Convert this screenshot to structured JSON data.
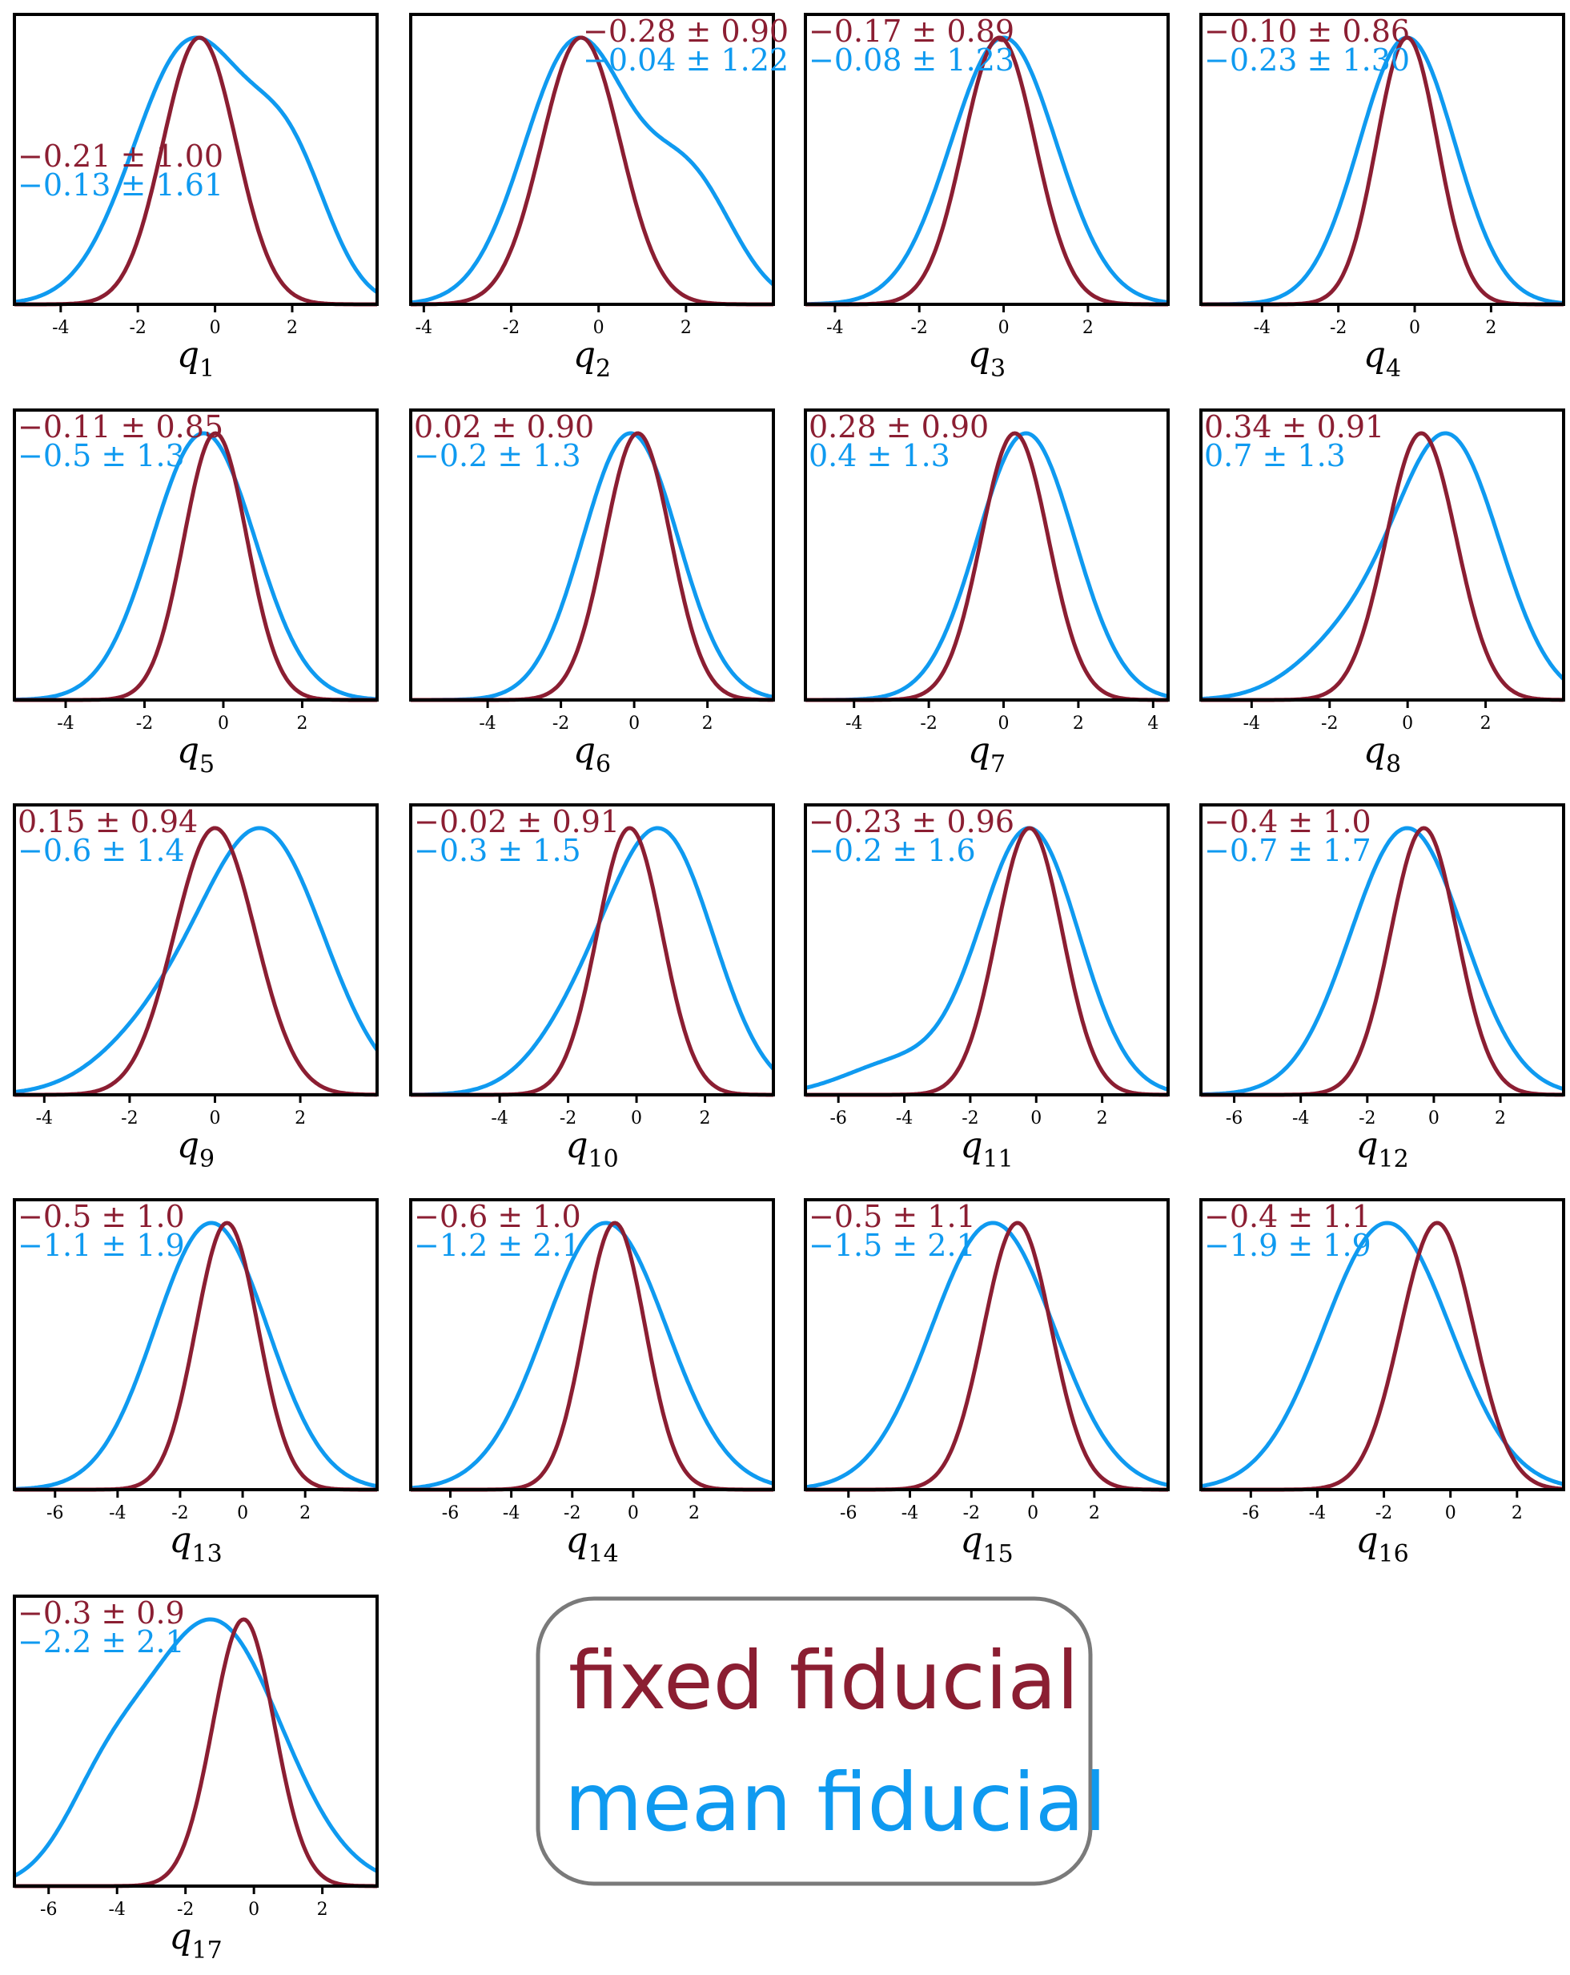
{
  "colors": {
    "fixed": "#8b1e32",
    "mean": "#0f9af0"
  },
  "legend": {
    "entries": [
      {
        "label": "fixed fiducial",
        "color": "#8b1e32"
      },
      {
        "label": "mean fiducial",
        "color": "#0f9af0"
      }
    ]
  },
  "chart_data": [
    {
      "type": "line",
      "xlabel": "q",
      "xsub": "1",
      "xlim": [
        -5.2,
        4.2
      ],
      "ticks": [
        -4,
        -2,
        0,
        2
      ],
      "tick_labels": [
        "-4",
        "-2",
        "0",
        "2"
      ],
      "fixed": {
        "mu": -0.4,
        "sigma": 0.95
      },
      "mean": {
        "mu": -0.6,
        "sigma": 1.5,
        "right_shoulder": true
      },
      "ann": [
        "−0.21 ± 1.00",
        "−0.13 ± 1.61"
      ],
      "ann_pos": "middle-left"
    },
    {
      "type": "line",
      "xlabel": "q",
      "xsub": "2",
      "xlim": [
        -4.3,
        4.0
      ],
      "ticks": [
        -4,
        -2,
        0,
        2
      ],
      "tick_labels": [
        "-4",
        "-2",
        "0",
        "2"
      ],
      "fixed": {
        "mu": -0.4,
        "sigma": 0.9
      },
      "mean": {
        "mu": -0.5,
        "sigma": 1.2,
        "right_shoulder": true
      },
      "ann": [
        "−0.28 ± 0.90",
        "−0.04 ± 1.22"
      ],
      "ann_pos": "top-right"
    },
    {
      "type": "line",
      "xlabel": "q",
      "xsub": "3",
      "xlim": [
        -4.7,
        3.9
      ],
      "ticks": [
        -4,
        -2,
        0,
        2
      ],
      "tick_labels": [
        "-4",
        "-2",
        "0",
        "2"
      ],
      "fixed": {
        "mu": -0.1,
        "sigma": 0.85
      },
      "mean": {
        "mu": 0.0,
        "sigma": 1.25
      },
      "ann": [
        "−0.17 ± 0.89",
        "−0.08 ± 1.23"
      ],
      "ann_pos": "top-left"
    },
    {
      "type": "line",
      "xlabel": "q",
      "xsub": "4",
      "xlim": [
        -5.6,
        3.9
      ],
      "ticks": [
        -4,
        -2,
        0,
        2
      ],
      "tick_labels": [
        "-4",
        "-2",
        "0",
        "2"
      ],
      "fixed": {
        "mu": -0.2,
        "sigma": 0.8
      },
      "mean": {
        "mu": -0.2,
        "sigma": 1.25
      },
      "ann": [
        "−0.10 ± 0.86",
        "−0.23 ± 1.30"
      ],
      "ann_pos": "top-left"
    },
    {
      "type": "line",
      "xlabel": "q",
      "xsub": "5",
      "xlim": [
        -5.3,
        3.9
      ],
      "ticks": [
        -4,
        -2,
        0,
        2
      ],
      "tick_labels": [
        "-4",
        "-2",
        "0",
        "2"
      ],
      "fixed": {
        "mu": -0.2,
        "sigma": 0.8
      },
      "mean": {
        "mu": -0.5,
        "sigma": 1.3
      },
      "ann": [
        "−0.11 ± 0.85",
        "−0.5 ± 1.3"
      ],
      "ann_pos": "top-left"
    },
    {
      "type": "line",
      "xlabel": "q",
      "xsub": "6",
      "xlim": [
        -6.1,
        3.8
      ],
      "ticks": [
        -4,
        -2,
        0,
        2
      ],
      "tick_labels": [
        "-4",
        "-2",
        "0",
        "2"
      ],
      "fixed": {
        "mu": 0.1,
        "sigma": 0.9
      },
      "mean": {
        "mu": -0.1,
        "sigma": 1.3
      },
      "ann": [
        "0.02 ± 0.90",
        "−0.2 ± 1.3"
      ],
      "ann_pos": "top-left"
    },
    {
      "type": "line",
      "xlabel": "q",
      "xsub": "7",
      "xlim": [
        -5.3,
        4.4
      ],
      "ticks": [
        -4,
        -2,
        0,
        2,
        4
      ],
      "tick_labels": [
        "-4",
        "-2",
        "0",
        "2",
        "4"
      ],
      "fixed": {
        "mu": 0.3,
        "sigma": 0.9
      },
      "mean": {
        "mu": 0.6,
        "sigma": 1.3
      },
      "ann": [
        "0.28 ± 0.90",
        "0.4 ± 1.3"
      ],
      "ann_pos": "top-left"
    },
    {
      "type": "line",
      "xlabel": "q",
      "xsub": "8",
      "xlim": [
        -5.3,
        4.0
      ],
      "ticks": [
        -4,
        -2,
        0,
        2
      ],
      "tick_labels": [
        "-4",
        "-2",
        "0",
        "2"
      ],
      "fixed": {
        "mu": 0.35,
        "sigma": 0.9
      },
      "mean": {
        "mu": 1.1,
        "sigma": 1.3,
        "left_skew": true
      },
      "ann": [
        "0.34 ± 0.91",
        "0.7 ± 1.3"
      ],
      "ann_pos": "top-left"
    },
    {
      "type": "line",
      "xlabel": "q",
      "xsub": "9",
      "xlim": [
        -4.7,
        3.8
      ],
      "ticks": [
        -4,
        -2,
        0,
        2
      ],
      "tick_labels": [
        "-4",
        "-2",
        "0",
        "2"
      ],
      "fixed": {
        "mu": 0.0,
        "sigma": 0.95
      },
      "mean": {
        "mu": 1.2,
        "sigma": 1.4,
        "left_skew": true
      },
      "ann": [
        "0.15 ± 0.94",
        "−0.6 ± 1.4"
      ],
      "ann_pos": "top-left"
    },
    {
      "type": "line",
      "xlabel": "q",
      "xsub": "10",
      "xlim": [
        -6.6,
        4.0
      ],
      "ticks": [
        -4,
        -2,
        0,
        2
      ],
      "tick_labels": [
        "-4",
        "-2",
        "0",
        "2"
      ],
      "fixed": {
        "mu": -0.2,
        "sigma": 0.95
      },
      "mean": {
        "mu": 0.8,
        "sigma": 1.5,
        "left_skew": true
      },
      "ann": [
        "−0.02 ± 0.91",
        "−0.3 ± 1.5"
      ],
      "ann_pos": "top-left"
    },
    {
      "type": "line",
      "xlabel": "q",
      "xsub": "11",
      "xlim": [
        -7.0,
        4.0
      ],
      "ticks": [
        -6,
        -4,
        -2,
        0,
        2
      ],
      "tick_labels": [
        "-6",
        "-4",
        "-2",
        "0",
        "2"
      ],
      "fixed": {
        "mu": -0.2,
        "sigma": 1.0
      },
      "mean": {
        "mu": -0.2,
        "sigma": 1.5,
        "left_tail": true
      },
      "ann": [
        "−0.23 ± 0.96",
        "−0.2 ± 1.6"
      ],
      "ann_pos": "top-left"
    },
    {
      "type": "line",
      "xlabel": "q",
      "xsub": "12",
      "xlim": [
        -7.0,
        3.9
      ],
      "ticks": [
        -6,
        -4,
        -2,
        0,
        2
      ],
      "tick_labels": [
        "-6",
        "-4",
        "-2",
        "0",
        "2"
      ],
      "fixed": {
        "mu": -0.3,
        "sigma": 1.0
      },
      "mean": {
        "mu": -0.8,
        "sigma": 1.7
      },
      "ann": [
        "−0.4 ± 1.0",
        "−0.7 ± 1.7"
      ],
      "ann_pos": "top-left"
    },
    {
      "type": "line",
      "xlabel": "q",
      "xsub": "13",
      "xlim": [
        -7.3,
        4.3
      ],
      "ticks": [
        -6,
        -4,
        -2,
        0,
        2
      ],
      "tick_labels": [
        "-6",
        "-4",
        "-2",
        "0",
        "2"
      ],
      "fixed": {
        "mu": -0.5,
        "sigma": 1.0
      },
      "mean": {
        "mu": -1.0,
        "sigma": 1.8
      },
      "ann": [
        "−0.5 ± 1.0",
        "−1.1 ± 1.9"
      ],
      "ann_pos": "top-left"
    },
    {
      "type": "line",
      "xlabel": "q",
      "xsub": "14",
      "xlim": [
        -7.3,
        4.6
      ],
      "ticks": [
        -6,
        -4,
        -2,
        0,
        2
      ],
      "tick_labels": [
        "-6",
        "-4",
        "-2",
        "0",
        "2"
      ],
      "fixed": {
        "mu": -0.6,
        "sigma": 1.0
      },
      "mean": {
        "mu": -0.9,
        "sigma": 2.0
      },
      "ann": [
        "−0.6 ± 1.0",
        "−1.2 ± 2.1"
      ],
      "ann_pos": "top-left"
    },
    {
      "type": "line",
      "xlabel": "q",
      "xsub": "15",
      "xlim": [
        -7.4,
        4.4
      ],
      "ticks": [
        -6,
        -4,
        -2,
        0,
        2
      ],
      "tick_labels": [
        "-6",
        "-4",
        "-2",
        "0",
        "2"
      ],
      "fixed": {
        "mu": -0.5,
        "sigma": 1.1
      },
      "mean": {
        "mu": -1.3,
        "sigma": 2.0
      },
      "ann": [
        "−0.5 ± 1.1",
        "−1.5 ± 2.1"
      ],
      "ann_pos": "top-left"
    },
    {
      "type": "line",
      "xlabel": "q",
      "xsub": "16",
      "xlim": [
        -7.5,
        3.4
      ],
      "ticks": [
        -6,
        -4,
        -2,
        0,
        2
      ],
      "tick_labels": [
        "-6",
        "-4",
        "-2",
        "0",
        "2"
      ],
      "fixed": {
        "mu": -0.4,
        "sigma": 1.1
      },
      "mean": {
        "mu": -1.9,
        "sigma": 1.9
      },
      "ann": [
        "−0.4 ± 1.1",
        "−1.9 ± 1.9"
      ],
      "ann_pos": "top-left"
    },
    {
      "type": "line",
      "xlabel": "q",
      "xsub": "17",
      "xlim": [
        -7.0,
        3.6
      ],
      "ticks": [
        -6,
        -4,
        -2,
        0,
        2
      ],
      "tick_labels": [
        "-6",
        "-4",
        "-2",
        "0",
        "2"
      ],
      "fixed": {
        "mu": -0.3,
        "sigma": 0.9
      },
      "mean": {
        "mu": -1.2,
        "sigma": 2.0,
        "bimodal_left": true
      },
      "ann": [
        "−0.3 ± 0.9",
        "−2.2 ± 2.1"
      ],
      "ann_pos": "top-left"
    }
  ]
}
